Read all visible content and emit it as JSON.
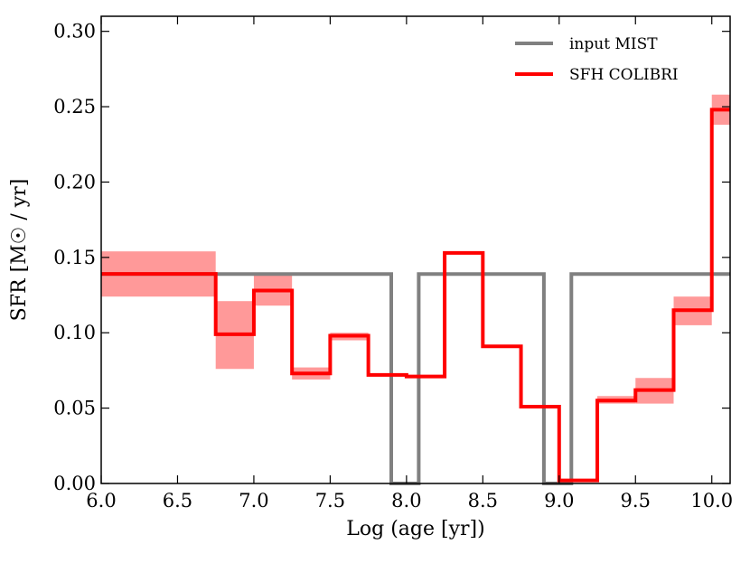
{
  "chart_data": {
    "type": "step",
    "xlabel": "Log (age [yr])",
    "ylabel": "SFR [M☉ / yr]",
    "xlim": [
      6.0,
      10.12
    ],
    "ylim": [
      0.0,
      0.31
    ],
    "xticks": [
      6.0,
      6.5,
      7.0,
      7.5,
      8.0,
      8.5,
      9.0,
      9.5,
      10.0
    ],
    "xtick_labels": [
      "6.0",
      "6.5",
      "7.0",
      "7.5",
      "8.0",
      "8.5",
      "9.0",
      "9.5",
      "10.0"
    ],
    "yticks": [
      0.0,
      0.05,
      0.1,
      0.15,
      0.2,
      0.25,
      0.3
    ],
    "ytick_labels": [
      "0.00",
      "0.05",
      "0.10",
      "0.15",
      "0.20",
      "0.25",
      "0.30"
    ],
    "legend_position": "top-right",
    "series": [
      {
        "name": "input MIST",
        "color": "#808080",
        "points": [
          [
            6.0,
            0.139
          ],
          [
            7.9,
            0.139
          ],
          [
            7.9,
            0.0
          ],
          [
            8.08,
            0.0
          ],
          [
            8.08,
            0.139
          ],
          [
            8.9,
            0.139
          ],
          [
            8.9,
            0.0
          ],
          [
            9.08,
            0.0
          ],
          [
            9.08,
            0.139
          ],
          [
            10.12,
            0.139
          ]
        ]
      },
      {
        "name": "SFH COLIBRI",
        "color": "#ff0000",
        "bins": [
          {
            "x0": 6.0,
            "x1": 6.75,
            "value": 0.139,
            "lo": 0.124,
            "hi": 0.154
          },
          {
            "x0": 6.75,
            "x1": 7.0,
            "value": 0.099,
            "lo": 0.076,
            "hi": 0.121
          },
          {
            "x0": 7.0,
            "x1": 7.25,
            "value": 0.128,
            "lo": 0.118,
            "hi": 0.138
          },
          {
            "x0": 7.25,
            "x1": 7.5,
            "value": 0.073,
            "lo": 0.069,
            "hi": 0.077
          },
          {
            "x0": 7.5,
            "x1": 7.75,
            "value": 0.098,
            "lo": 0.095,
            "hi": 0.1
          },
          {
            "x0": 7.75,
            "x1": 8.0,
            "value": 0.072,
            "lo": 0.071,
            "hi": 0.073
          },
          {
            "x0": 8.0,
            "x1": 8.25,
            "value": 0.071,
            "lo": 0.07,
            "hi": 0.072
          },
          {
            "x0": 8.25,
            "x1": 8.5,
            "value": 0.153,
            "lo": 0.152,
            "hi": 0.154
          },
          {
            "x0": 8.5,
            "x1": 8.75,
            "value": 0.091,
            "lo": 0.09,
            "hi": 0.092
          },
          {
            "x0": 8.75,
            "x1": 9.0,
            "value": 0.051,
            "lo": 0.05,
            "hi": 0.052
          },
          {
            "x0": 9.0,
            "x1": 9.25,
            "value": 0.002,
            "lo": 0.001,
            "hi": 0.003
          },
          {
            "x0": 9.25,
            "x1": 9.5,
            "value": 0.055,
            "lo": 0.053,
            "hi": 0.058
          },
          {
            "x0": 9.5,
            "x1": 9.75,
            "value": 0.062,
            "lo": 0.053,
            "hi": 0.07
          },
          {
            "x0": 9.75,
            "x1": 10.0,
            "value": 0.115,
            "lo": 0.105,
            "hi": 0.124
          },
          {
            "x0": 10.0,
            "x1": 10.12,
            "value": 0.248,
            "lo": 0.238,
            "hi": 0.258
          }
        ]
      }
    ]
  },
  "colors": {
    "band": "#ff9999",
    "mist": "#808080",
    "colibri": "#ff0000",
    "axis": "#000000"
  }
}
